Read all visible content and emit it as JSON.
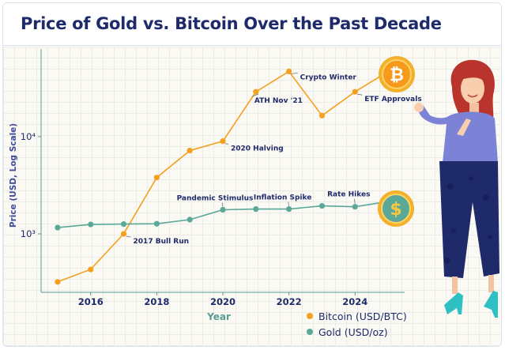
{
  "title": "Price of Gold vs. Bitcoin Over the Past Decade",
  "colors": {
    "bitcoin": "#f5a01e",
    "gold": "#5aa898",
    "text": "#1f2a6b",
    "axis": "#5b9c95"
  },
  "chart_data": {
    "type": "line",
    "title": "Price of Gold vs. Bitcoin Over the Past Decade",
    "xlabel": "Year",
    "ylabel": "Price (USD, Log Scale)",
    "yscale": "log",
    "xlim": [
      2014.5,
      2025.5
    ],
    "ylim": [
      250,
      80000
    ],
    "xticks": [
      2016,
      2018,
      2020,
      2022,
      2024
    ],
    "xtick_labels": [
      "2016",
      "2018",
      "2020",
      "2022",
      "2024"
    ],
    "yticks": [
      1000,
      10000
    ],
    "ytick_labels": [
      "10³",
      "10⁴"
    ],
    "grid": true,
    "legend_position": "bottom-right",
    "series": [
      {
        "name": "Bitcoin (USD/BTC)",
        "color": "#f5a01e",
        "x": [
          2015,
          2016,
          2017,
          2018,
          2019,
          2020,
          2021,
          2022,
          2023,
          2024,
          2025
        ],
        "y": [
          320,
          430,
          1000,
          3800,
          7200,
          9000,
          29000,
          47000,
          16500,
          29000,
          47000
        ]
      },
      {
        "name": "Gold (USD/oz)",
        "color": "#5aa898",
        "x": [
          2015,
          2016,
          2017,
          2018,
          2019,
          2020,
          2021,
          2022,
          2023,
          2024,
          2025
        ],
        "y": [
          1160,
          1250,
          1260,
          1270,
          1400,
          1770,
          1800,
          1800,
          1940,
          1900,
          2150
        ]
      }
    ],
    "annotations": [
      {
        "text": "2017 Bull Run",
        "series": 0,
        "x": 2017
      },
      {
        "text": "2020 Halving",
        "series": 0,
        "x": 2020
      },
      {
        "text": "ATH Nov '21",
        "series": 0,
        "x": 2021
      },
      {
        "text": "Crypto Winter",
        "series": 0,
        "x": 2022
      },
      {
        "text": "ETF Approvals",
        "series": 0,
        "x": 2024
      },
      {
        "text": "Pandemic Stimulus",
        "series": 1,
        "x": 2020
      },
      {
        "text": "Inflation Spike",
        "series": 1,
        "x": 2022
      },
      {
        "text": "Rate Hikes",
        "series": 1,
        "x": 2024
      }
    ]
  },
  "legend": {
    "bitcoin": "Bitcoin (USD/BTC)",
    "gold": "Gold (USD/oz)"
  },
  "icons": {
    "bitcoin_coin": "₿",
    "dollar_coin": "$"
  }
}
